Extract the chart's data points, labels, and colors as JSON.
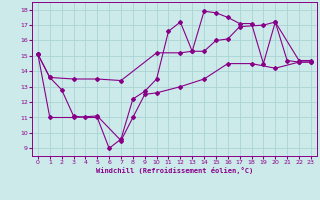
{
  "xlabel": "Windchill (Refroidissement éolien,°C)",
  "bg_color": "#cceaea",
  "line_color": "#880088",
  "grid_color": "#aad4d4",
  "axis_color": "#880088",
  "tick_color": "#880088",
  "xlim": [
    -0.5,
    23.5
  ],
  "ylim": [
    8.5,
    18.5
  ],
  "xticks": [
    0,
    1,
    2,
    3,
    4,
    5,
    6,
    7,
    8,
    9,
    10,
    11,
    12,
    13,
    14,
    15,
    16,
    17,
    18,
    19,
    20,
    21,
    22,
    23
  ],
  "yticks": [
    9,
    10,
    11,
    12,
    13,
    14,
    15,
    16,
    17,
    18
  ],
  "line1_x": [
    0,
    1,
    2,
    3,
    4,
    5,
    6,
    7,
    8,
    9,
    10,
    11,
    12,
    13,
    14,
    15,
    16,
    17,
    18,
    19,
    20,
    21,
    22,
    23
  ],
  "line1_y": [
    15.1,
    13.6,
    12.8,
    11.1,
    11.0,
    11.0,
    9.0,
    9.6,
    12.2,
    12.7,
    13.5,
    16.6,
    17.2,
    15.3,
    17.9,
    17.8,
    17.5,
    17.1,
    17.1,
    14.5,
    17.2,
    14.7,
    14.6,
    14.6
  ],
  "line2_x": [
    0,
    1,
    3,
    5,
    7,
    10,
    12,
    13,
    14,
    15,
    16,
    17,
    19,
    20,
    22,
    23
  ],
  "line2_y": [
    15.1,
    13.6,
    13.5,
    13.5,
    13.4,
    15.2,
    15.2,
    15.3,
    15.3,
    16.0,
    16.1,
    16.9,
    17.0,
    17.2,
    14.7,
    14.7
  ],
  "line3_x": [
    0,
    1,
    3,
    5,
    7,
    8,
    9,
    10,
    12,
    14,
    16,
    18,
    20,
    22,
    23
  ],
  "line3_y": [
    15.1,
    11.0,
    11.0,
    11.1,
    9.5,
    11.0,
    12.5,
    12.6,
    13.0,
    13.5,
    14.5,
    14.5,
    14.2,
    14.6,
    14.6
  ]
}
